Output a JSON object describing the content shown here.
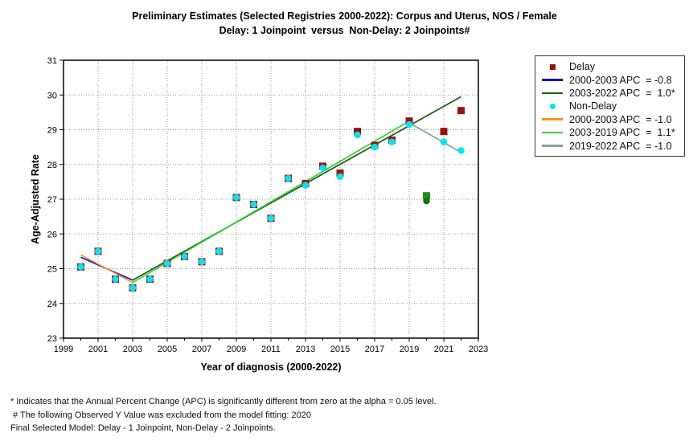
{
  "title": {
    "line1": "Preliminary Estimates (Selected Registries 2000-2022): Corpus and Uterus, NOS / Female",
    "line2": "Delay: 1 Joinpoint  versus  Non-Delay: 2 Joinpoints#"
  },
  "legend": {
    "items": [
      {
        "type": "square",
        "color": "#991111",
        "label": "Delay"
      },
      {
        "type": "line",
        "color": "#1010CC",
        "label": "2000-2003 APC  = -0.8"
      },
      {
        "type": "line",
        "color": "#1E5A1E",
        "label": "2003-2022 APC  =  1.0*"
      },
      {
        "type": "circle",
        "color": "#00E5EE",
        "label": "Non-Delay"
      },
      {
        "type": "line",
        "color": "#F5921E",
        "label": "2000-2003 APC  = -1.0"
      },
      {
        "type": "line",
        "color": "#2ED32E",
        "label": "2003-2019 APC  =  1.1*"
      },
      {
        "type": "line",
        "color": "#7FA3AC",
        "label": "2019-2022 APC  = -1.0"
      }
    ]
  },
  "footnotes": [
    "* Indicates that the Annual Percent Change (APC) is significantly different from zero at the alpha = 0.05 level.",
    " # The following Observed Y Value was excluded from the model fitting: 2020",
    "Final Selected Model: Delay - 1 Joinpoint, Non-Delay - 2 Joinpoints."
  ],
  "chart_data": {
    "type": "scatter",
    "title": "Preliminary Estimates (Selected Registries 2000-2022): Corpus and Uterus, NOS / Female",
    "subtitle": "Delay: 1 Joinpoint  versus  Non-Delay: 2 Joinpoints#",
    "xlabel": "Year of diagnosis (2000-2022)",
    "ylabel": "Age-Adjusted Rate",
    "xlim": [
      1999,
      2023
    ],
    "ylim": [
      23,
      31
    ],
    "x_ticks": [
      1999,
      2001,
      2003,
      2005,
      2007,
      2009,
      2011,
      2013,
      2015,
      2017,
      2019,
      2021,
      2023
    ],
    "y_ticks": [
      23,
      24,
      25,
      26,
      27,
      28,
      29,
      30,
      31
    ],
    "grid": "dotted",
    "grid_color": "#999999",
    "legend_position": "outside-right",
    "series": [
      {
        "name": "Delay (observed)",
        "slug": "delay-observed",
        "marker": "square",
        "color": "#991111",
        "points": [
          [
            2000,
            25.05
          ],
          [
            2001,
            25.5
          ],
          [
            2002,
            24.7
          ],
          [
            2003,
            24.45
          ],
          [
            2004,
            24.7
          ],
          [
            2005,
            25.15
          ],
          [
            2006,
            25.35
          ],
          [
            2007,
            25.2
          ],
          [
            2008,
            25.5
          ],
          [
            2009,
            27.05
          ],
          [
            2010,
            26.85
          ],
          [
            2011,
            26.45
          ],
          [
            2012,
            27.6
          ],
          [
            2013,
            27.45
          ],
          [
            2014,
            27.95
          ],
          [
            2015,
            27.75
          ],
          [
            2016,
            28.95
          ],
          [
            2017,
            28.55
          ],
          [
            2018,
            28.7
          ],
          [
            2019,
            29.25
          ],
          [
            2021,
            28.95
          ],
          [
            2022,
            29.55
          ]
        ]
      },
      {
        "name": "Delay excluded from model fitting (2020)",
        "slug": "delay-excluded",
        "marker": "square",
        "color": "#1E8E1E",
        "points": [
          [
            2020,
            27.1
          ]
        ]
      },
      {
        "name": "Non-Delay excluded from model fitting (2020)",
        "slug": "nondelay-excluded",
        "marker": "circle",
        "color": "#0C780C",
        "points": [
          [
            2020,
            26.95
          ]
        ]
      },
      {
        "name": "Non-Delay (observed)",
        "slug": "nondelay-observed",
        "marker": "circle",
        "color": "#00E5EE",
        "points": [
          [
            2000,
            25.05
          ],
          [
            2001,
            25.5
          ],
          [
            2002,
            24.7
          ],
          [
            2003,
            24.45
          ],
          [
            2004,
            24.7
          ],
          [
            2005,
            25.15
          ],
          [
            2006,
            25.35
          ],
          [
            2007,
            25.2
          ],
          [
            2008,
            25.5
          ],
          [
            2009,
            27.05
          ],
          [
            2010,
            26.85
          ],
          [
            2011,
            26.45
          ],
          [
            2012,
            27.6
          ],
          [
            2013,
            27.4
          ],
          [
            2014,
            27.9
          ],
          [
            2015,
            27.65
          ],
          [
            2016,
            28.85
          ],
          [
            2017,
            28.5
          ],
          [
            2018,
            28.65
          ],
          [
            2019,
            29.15
          ],
          [
            2021,
            28.65
          ],
          [
            2022,
            28.4
          ]
        ]
      }
    ],
    "fit_lines": [
      {
        "name": "Delay 2000-2003 APC = -0.8",
        "slug": "delay-fit-2000-2003",
        "color": "#1010CC",
        "points": [
          [
            2000,
            25.33
          ],
          [
            2003,
            24.67
          ]
        ]
      },
      {
        "name": "Delay 2003-2022 APC = 1.0*",
        "slug": "delay-fit-2003-2022",
        "color": "#1E5A1E",
        "points": [
          [
            2003,
            24.67
          ],
          [
            2022,
            29.95
          ]
        ]
      },
      {
        "name": "Non-Delay 2000-2003 APC = -1.0",
        "slug": "nondelay-fit-2000-2003",
        "color": "#F5921E",
        "points": [
          [
            2000,
            25.4
          ],
          [
            2003,
            24.6
          ]
        ]
      },
      {
        "name": "Non-Delay 2003-2019 APC = 1.1*",
        "slug": "nondelay-fit-2003-2019",
        "color": "#2ED32E",
        "points": [
          [
            2003,
            24.6
          ],
          [
            2019,
            29.25
          ]
        ]
      },
      {
        "name": "Non-Delay 2019-2022 APC = -1.0",
        "slug": "nondelay-fit-2019-2022",
        "color": "#7FA3AC",
        "points": [
          [
            2019,
            29.2
          ],
          [
            2022,
            28.35
          ]
        ]
      }
    ]
  }
}
